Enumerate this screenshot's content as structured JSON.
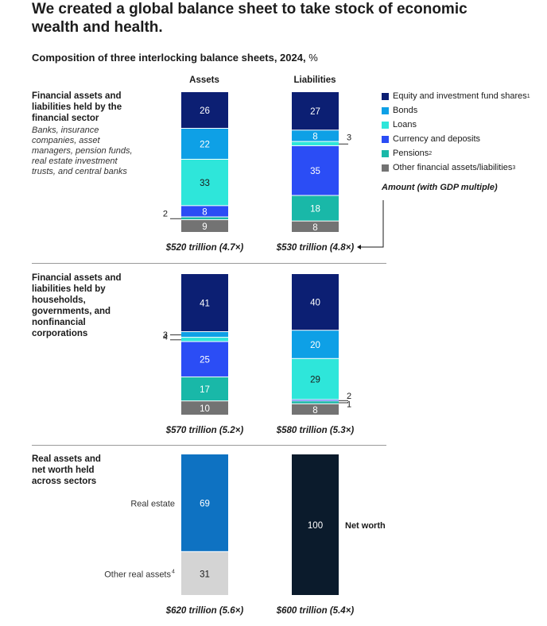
{
  "title": "We created a global balance sheet to take stock of economic wealth and health.",
  "subtitle": "Composition of three interlocking balance sheets, 2024,",
  "subtitle_unit": "%",
  "column_headers": [
    "Assets",
    "Liabilities"
  ],
  "sections": [
    {
      "title": "Financial assets and liabilities held by the financial sector",
      "description": "Banks, insurance companies, asset managers, pension funds, real estate investment trusts, and central banks"
    },
    {
      "title": "Financial assets and liabilities held by households, governments, and nonfinancial corporations"
    },
    {
      "title": "Real assets and net worth held across sectors"
    }
  ],
  "legend": {
    "items": [
      {
        "label": "Equity and investment fund shares",
        "note": "1",
        "color": "#0c1f73"
      },
      {
        "label": "Bonds",
        "note": "",
        "color": "#0ea0e6"
      },
      {
        "label": "Loans",
        "note": "",
        "color": "#2ee6da"
      },
      {
        "label": "Currency and deposits",
        "note": "",
        "color": "#2b4df5"
      },
      {
        "label": "Pensions",
        "note": "2",
        "color": "#19b8a8"
      },
      {
        "label": "Other financial assets/liabilities",
        "note": "3",
        "color": "#737373"
      }
    ],
    "amount_label": "Amount (with GDP multiple)"
  },
  "chart_data": [
    {
      "type": "bar",
      "stacked": true,
      "title": "Financial assets and liabilities held by the financial sector",
      "categories": [
        "Assets",
        "Liabilities"
      ],
      "series": [
        {
          "name": "Equity and investment fund shares",
          "values": [
            26,
            27
          ]
        },
        {
          "name": "Bonds",
          "values": [
            22,
            8
          ]
        },
        {
          "name": "Loans",
          "values": [
            33,
            3
          ]
        },
        {
          "name": "Currency and deposits",
          "values": [
            8,
            35
          ]
        },
        {
          "name": "Pensions",
          "values": [
            2,
            18
          ]
        },
        {
          "name": "Other financial assets/liabilities",
          "values": [
            9,
            8
          ]
        }
      ],
      "totals": [
        "$520 trillion (4.7×)",
        "$530 trillion (4.8×)"
      ]
    },
    {
      "type": "bar",
      "stacked": true,
      "title": "Financial assets and liabilities held by households, governments, and nonfinancial corporations",
      "categories": [
        "Assets",
        "Liabilities"
      ],
      "series": [
        {
          "name": "Equity and investment fund shares",
          "values": [
            41,
            40
          ]
        },
        {
          "name": "Bonds",
          "values": [
            4,
            20
          ]
        },
        {
          "name": "Loans",
          "values": [
            3,
            29
          ]
        },
        {
          "name": "Currency and deposits",
          "values": [
            25,
            1
          ]
        },
        {
          "name": "Pensions",
          "values": [
            17,
            2
          ]
        },
        {
          "name": "Other financial assets/liabilities",
          "values": [
            10,
            8
          ]
        }
      ],
      "totals": [
        "$570 trillion (5.2×)",
        "$580 trillion (5.3×)"
      ]
    },
    {
      "type": "bar",
      "stacked": true,
      "title": "Real assets and net worth held across sectors",
      "categories": [
        "Assets",
        "Liabilities"
      ],
      "assets": [
        {
          "name": "Real estate",
          "value": 69,
          "color": "#0e72c2"
        },
        {
          "name": "Other real assets",
          "note": "4",
          "value": 31,
          "color": "#d4d4d4"
        }
      ],
      "liabilities": [
        {
          "name": "Net worth",
          "value": 100,
          "color": "#0b1b2c"
        }
      ],
      "totals": [
        "$620 trillion (5.6×)",
        "$600 trillion (5.4×)"
      ]
    }
  ]
}
